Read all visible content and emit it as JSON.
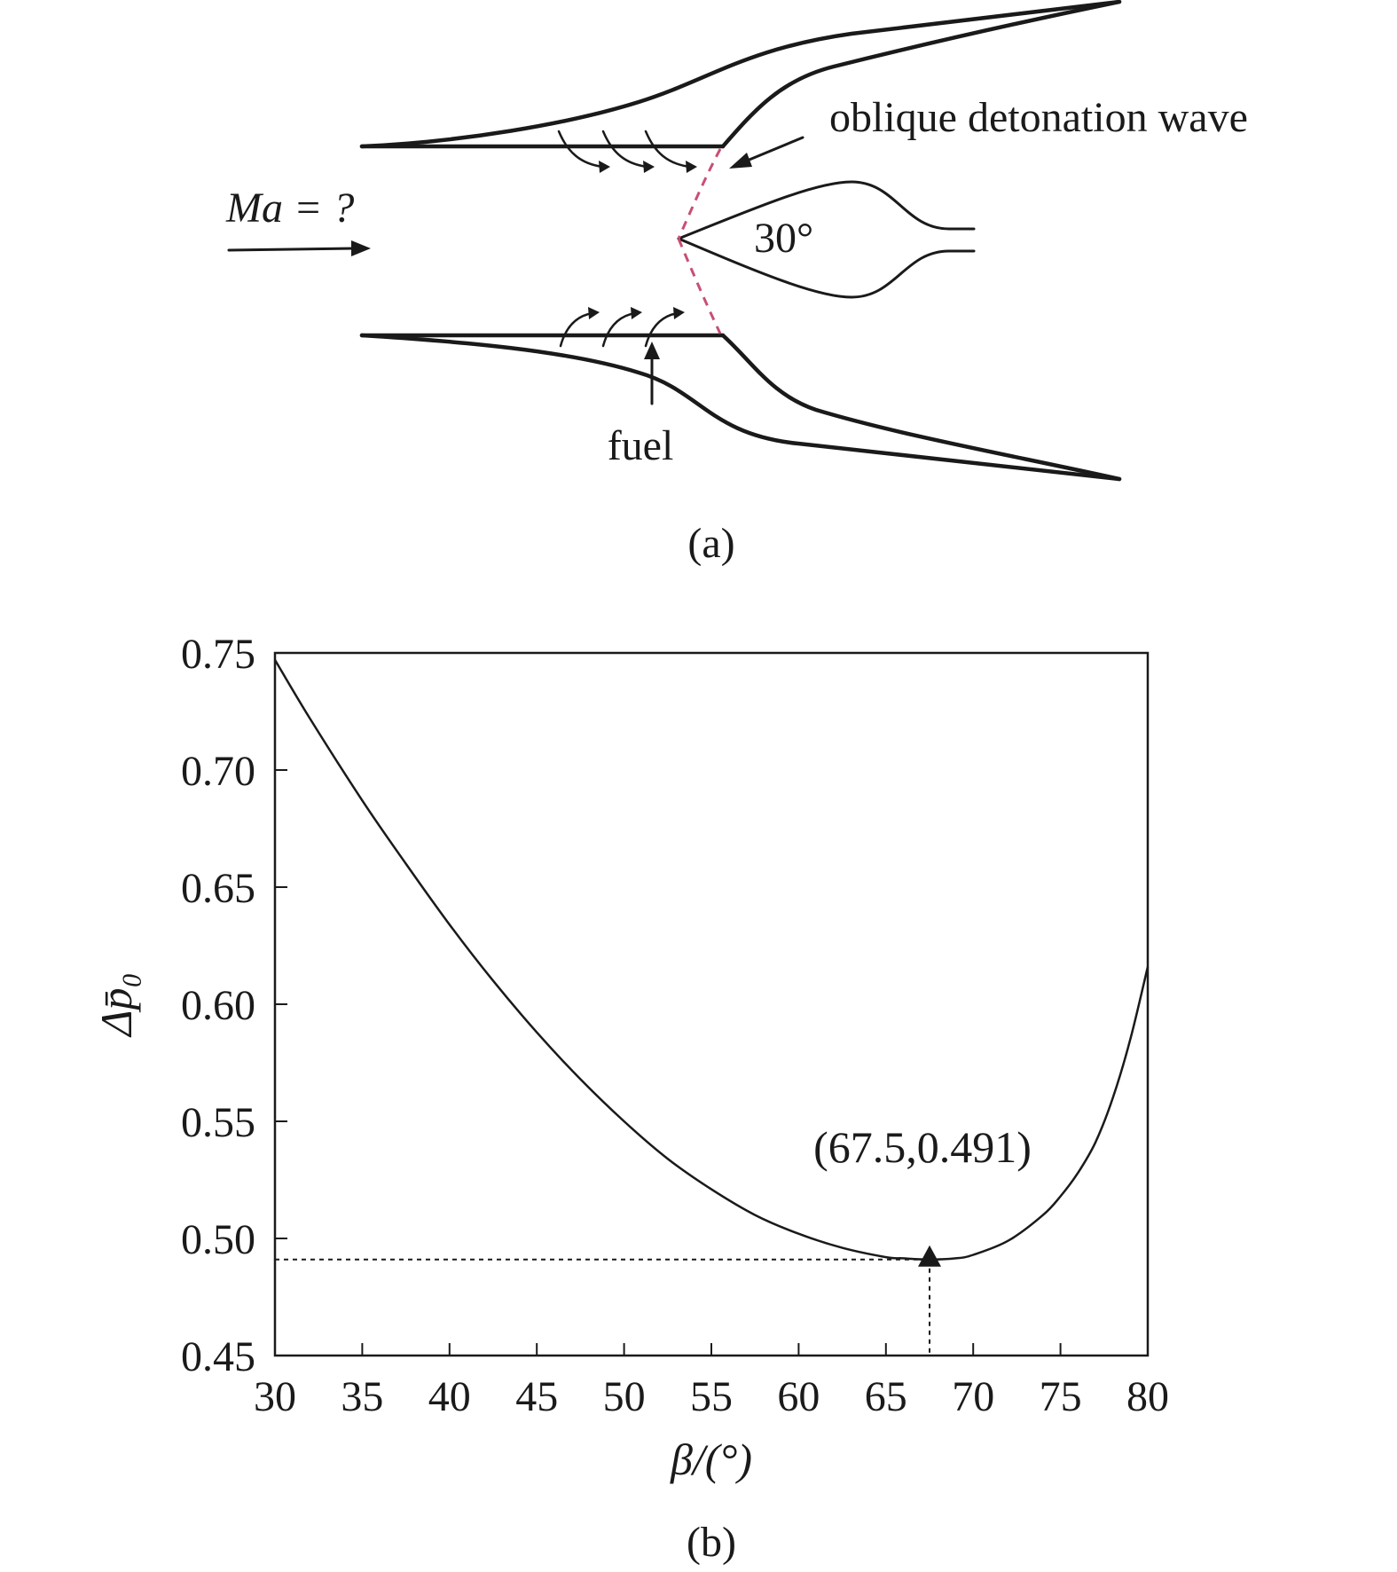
{
  "diagram": {
    "flow_label": "Ma = ?",
    "wave_label": "oblique detonation wave",
    "wedge_angle_label": "30°",
    "fuel_label": "fuel",
    "caption": "(a)"
  },
  "chart_data": {
    "type": "line",
    "caption": "(b)",
    "xlabel": "β/(°)",
    "ylabel": "Δp̄₀",
    "xlim": [
      30,
      80
    ],
    "ylim": [
      0.45,
      0.75
    ],
    "xticks": [
      30,
      35,
      40,
      45,
      50,
      55,
      60,
      65,
      70,
      75,
      80
    ],
    "xtick_labels": [
      "30",
      "35",
      "40",
      "45",
      "50",
      "55",
      "60",
      "65",
      "70",
      "75",
      "80"
    ],
    "yticks": [
      0.45,
      0.5,
      0.55,
      0.6,
      0.65,
      0.7,
      0.75
    ],
    "ytick_labels": [
      "0.45",
      "0.50",
      "0.55",
      "0.60",
      "0.65",
      "0.70",
      "0.75"
    ],
    "grid": false,
    "series": [
      {
        "x": [
          30,
          32,
          35,
          37.5,
          40,
          42.5,
          45,
          47.5,
          50,
          52.5,
          55,
          57.5,
          60,
          62.5,
          65,
          66,
          67.5,
          69,
          70,
          72,
          74,
          75,
          76,
          77,
          78,
          79,
          80
        ],
        "y": [
          0.747,
          0.722,
          0.687,
          0.66,
          0.634,
          0.61,
          0.588,
          0.568,
          0.55,
          0.534,
          0.521,
          0.51,
          0.502,
          0.496,
          0.492,
          0.4915,
          0.491,
          0.4915,
          0.493,
          0.499,
          0.51,
          0.518,
          0.528,
          0.541,
          0.56,
          0.585,
          0.616
        ]
      }
    ],
    "annotation": {
      "label": "(67.5,0.491)",
      "x": 67.5,
      "y": 0.491,
      "marker": "triangle"
    }
  }
}
